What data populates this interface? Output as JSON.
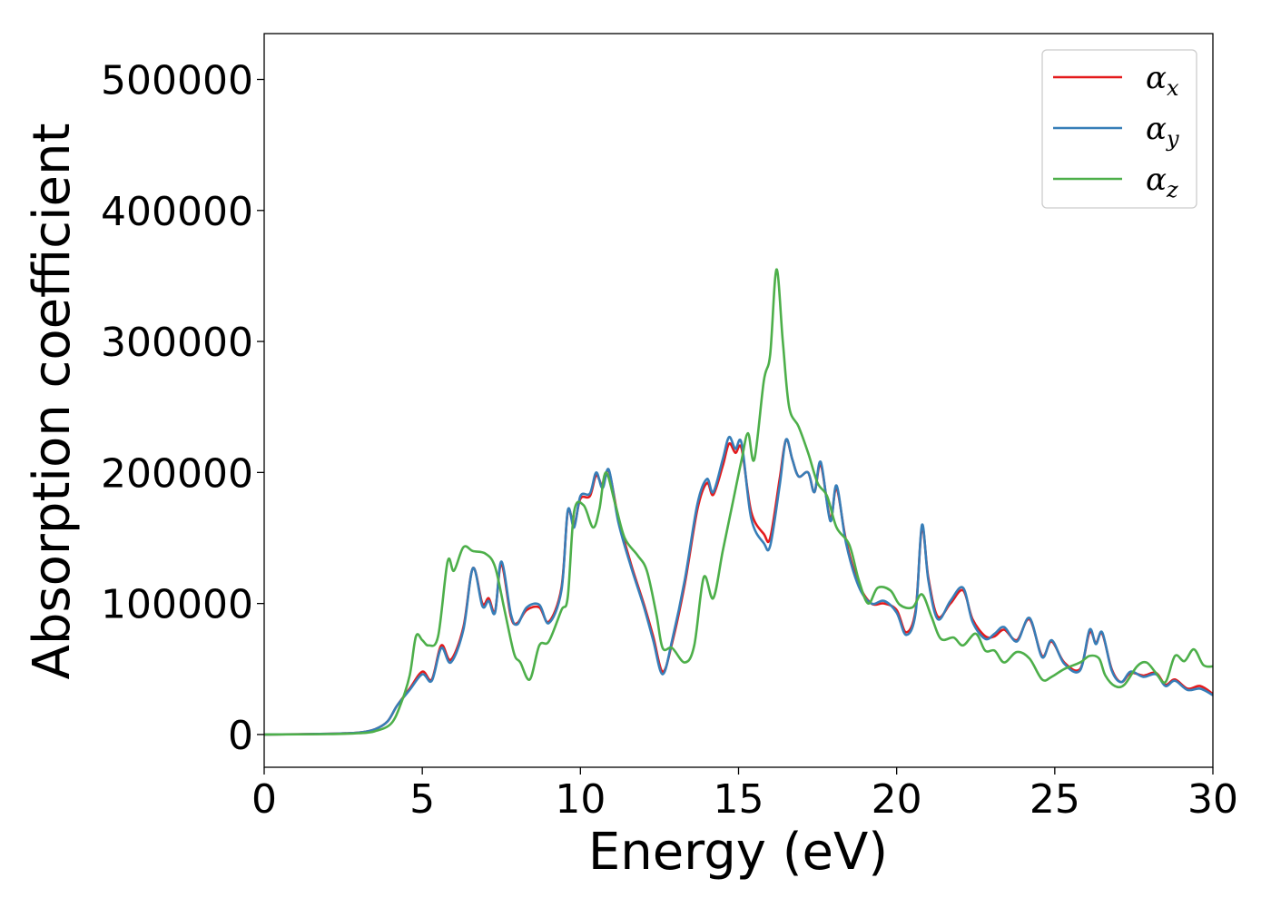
{
  "chart_data": {
    "type": "line",
    "xlabel": "Energy (eV)",
    "ylabel": "Absorption coefficient",
    "xlim": [
      0,
      30
    ],
    "ylim": [
      -25000,
      535000
    ],
    "xticks": [
      0,
      5,
      10,
      15,
      20,
      25,
      30
    ],
    "yticks": [
      0,
      100000,
      200000,
      300000,
      400000,
      500000
    ],
    "grid": false,
    "legend_position": "top-right",
    "series": [
      {
        "name": "α_x",
        "symbol": "α",
        "subscript": "x",
        "color": "#e41a1c",
        "points": [
          [
            0,
            0
          ],
          [
            2,
            500
          ],
          [
            3,
            1500
          ],
          [
            3.5,
            4000
          ],
          [
            3.9,
            10000
          ],
          [
            4.2,
            22000
          ],
          [
            4.6,
            35000
          ],
          [
            5.0,
            48000
          ],
          [
            5.3,
            42000
          ],
          [
            5.6,
            68000
          ],
          [
            5.9,
            57000
          ],
          [
            6.3,
            82000
          ],
          [
            6.6,
            127000
          ],
          [
            6.9,
            100000
          ],
          [
            7.1,
            104000
          ],
          [
            7.3,
            94000
          ],
          [
            7.5,
            130000
          ],
          [
            7.8,
            90000
          ],
          [
            8.0,
            85000
          ],
          [
            8.3,
            95000
          ],
          [
            8.7,
            97000
          ],
          [
            9.0,
            86000
          ],
          [
            9.4,
            112000
          ],
          [
            9.6,
            170000
          ],
          [
            9.8,
            160000
          ],
          [
            10.0,
            180000
          ],
          [
            10.3,
            182000
          ],
          [
            10.5,
            198000
          ],
          [
            10.7,
            190000
          ],
          [
            10.9,
            201000
          ],
          [
            11.2,
            165000
          ],
          [
            11.6,
            130000
          ],
          [
            12.0,
            100000
          ],
          [
            12.3,
            75000
          ],
          [
            12.6,
            48000
          ],
          [
            12.9,
            70000
          ],
          [
            13.3,
            115000
          ],
          [
            13.7,
            172000
          ],
          [
            14.0,
            192000
          ],
          [
            14.2,
            183000
          ],
          [
            14.5,
            205000
          ],
          [
            14.7,
            222000
          ],
          [
            14.9,
            215000
          ],
          [
            15.1,
            218000
          ],
          [
            15.4,
            170000
          ],
          [
            15.8,
            153000
          ],
          [
            16.0,
            150000
          ],
          [
            16.3,
            195000
          ],
          [
            16.5,
            225000
          ],
          [
            16.7,
            210000
          ],
          [
            16.9,
            197000
          ],
          [
            17.2,
            200000
          ],
          [
            17.4,
            185000
          ],
          [
            17.6,
            206000
          ],
          [
            17.9,
            165000
          ],
          [
            18.1,
            188000
          ],
          [
            18.4,
            148000
          ],
          [
            18.8,
            115000
          ],
          [
            19.2,
            100000
          ],
          [
            19.6,
            100000
          ],
          [
            20.0,
            95000
          ],
          [
            20.3,
            78000
          ],
          [
            20.6,
            95000
          ],
          [
            20.8,
            158000
          ],
          [
            21.0,
            120000
          ],
          [
            21.3,
            90000
          ],
          [
            21.7,
            100000
          ],
          [
            22.1,
            110000
          ],
          [
            22.4,
            88000
          ],
          [
            22.8,
            75000
          ],
          [
            23.1,
            75000
          ],
          [
            23.4,
            80000
          ],
          [
            23.8,
            72000
          ],
          [
            24.2,
            88000
          ],
          [
            24.6,
            60000
          ],
          [
            24.9,
            71000
          ],
          [
            25.3,
            55000
          ],
          [
            25.8,
            50000
          ],
          [
            26.1,
            78000
          ],
          [
            26.3,
            70000
          ],
          [
            26.5,
            77000
          ],
          [
            26.8,
            50000
          ],
          [
            27.1,
            40000
          ],
          [
            27.4,
            47000
          ],
          [
            27.8,
            45000
          ],
          [
            28.2,
            47000
          ],
          [
            28.5,
            38000
          ],
          [
            28.8,
            42000
          ],
          [
            29.2,
            35000
          ],
          [
            29.6,
            37000
          ],
          [
            30,
            31000
          ]
        ]
      },
      {
        "name": "α_y",
        "symbol": "α",
        "subscript": "y",
        "color": "#377eb8",
        "points": [
          [
            0,
            0
          ],
          [
            2,
            500
          ],
          [
            3,
            1500
          ],
          [
            3.5,
            4000
          ],
          [
            3.9,
            10000
          ],
          [
            4.2,
            22000
          ],
          [
            4.6,
            34000
          ],
          [
            5.0,
            46000
          ],
          [
            5.3,
            41000
          ],
          [
            5.6,
            66000
          ],
          [
            5.9,
            55000
          ],
          [
            6.3,
            80000
          ],
          [
            6.6,
            127000
          ],
          [
            6.9,
            98000
          ],
          [
            7.1,
            102000
          ],
          [
            7.3,
            93000
          ],
          [
            7.5,
            132000
          ],
          [
            7.8,
            92000
          ],
          [
            8.0,
            84000
          ],
          [
            8.3,
            97000
          ],
          [
            8.7,
            99000
          ],
          [
            9.0,
            85000
          ],
          [
            9.4,
            110000
          ],
          [
            9.6,
            171000
          ],
          [
            9.8,
            158000
          ],
          [
            10.0,
            182000
          ],
          [
            10.3,
            184000
          ],
          [
            10.5,
            200000
          ],
          [
            10.7,
            188000
          ],
          [
            10.9,
            202000
          ],
          [
            11.2,
            162000
          ],
          [
            11.6,
            128000
          ],
          [
            12.0,
            98000
          ],
          [
            12.3,
            72000
          ],
          [
            12.6,
            46000
          ],
          [
            12.9,
            72000
          ],
          [
            13.3,
            118000
          ],
          [
            13.7,
            176000
          ],
          [
            14.0,
            195000
          ],
          [
            14.2,
            185000
          ],
          [
            14.5,
            210000
          ],
          [
            14.7,
            227000
          ],
          [
            14.9,
            218000
          ],
          [
            15.1,
            222000
          ],
          [
            15.4,
            165000
          ],
          [
            15.8,
            146000
          ],
          [
            16.0,
            144000
          ],
          [
            16.3,
            190000
          ],
          [
            16.5,
            225000
          ],
          [
            16.7,
            210000
          ],
          [
            16.9,
            197000
          ],
          [
            17.2,
            200000
          ],
          [
            17.4,
            185000
          ],
          [
            17.6,
            208000
          ],
          [
            17.9,
            163000
          ],
          [
            18.1,
            190000
          ],
          [
            18.4,
            146000
          ],
          [
            18.8,
            113000
          ],
          [
            19.2,
            100000
          ],
          [
            19.6,
            102000
          ],
          [
            20.0,
            93000
          ],
          [
            20.3,
            76000
          ],
          [
            20.6,
            93000
          ],
          [
            20.8,
            160000
          ],
          [
            21.0,
            118000
          ],
          [
            21.3,
            88000
          ],
          [
            21.7,
            102000
          ],
          [
            22.1,
            112000
          ],
          [
            22.4,
            86000
          ],
          [
            22.8,
            73000
          ],
          [
            23.1,
            77000
          ],
          [
            23.4,
            82000
          ],
          [
            23.8,
            71000
          ],
          [
            24.2,
            89000
          ],
          [
            24.6,
            59000
          ],
          [
            24.9,
            72000
          ],
          [
            25.3,
            54000
          ],
          [
            25.8,
            49000
          ],
          [
            26.1,
            80000
          ],
          [
            26.3,
            69000
          ],
          [
            26.5,
            78000
          ],
          [
            26.8,
            49000
          ],
          [
            27.1,
            40000
          ],
          [
            27.4,
            48000
          ],
          [
            27.8,
            44000
          ],
          [
            28.2,
            46000
          ],
          [
            28.5,
            37000
          ],
          [
            28.8,
            41000
          ],
          [
            29.2,
            34000
          ],
          [
            29.6,
            35000
          ],
          [
            30,
            30000
          ]
        ]
      },
      {
        "name": "α_z",
        "symbol": "α",
        "subscript": "z",
        "color": "#4daf4a",
        "points": [
          [
            0,
            0
          ],
          [
            2,
            300
          ],
          [
            3,
            1000
          ],
          [
            3.5,
            2500
          ],
          [
            4.0,
            8000
          ],
          [
            4.3,
            22000
          ],
          [
            4.6,
            45000
          ],
          [
            4.8,
            75000
          ],
          [
            5.0,
            72000
          ],
          [
            5.2,
            68000
          ],
          [
            5.5,
            75000
          ],
          [
            5.8,
            132000
          ],
          [
            6.0,
            125000
          ],
          [
            6.3,
            143000
          ],
          [
            6.6,
            140000
          ],
          [
            7.0,
            138000
          ],
          [
            7.3,
            128000
          ],
          [
            7.6,
            95000
          ],
          [
            7.9,
            62000
          ],
          [
            8.1,
            55000
          ],
          [
            8.4,
            42000
          ],
          [
            8.7,
            68000
          ],
          [
            9.0,
            71000
          ],
          [
            9.4,
            95000
          ],
          [
            9.6,
            105000
          ],
          [
            9.8,
            170000
          ],
          [
            10.1,
            175000
          ],
          [
            10.4,
            158000
          ],
          [
            10.6,
            172000
          ],
          [
            10.8,
            200000
          ],
          [
            11.1,
            176000
          ],
          [
            11.4,
            150000
          ],
          [
            11.8,
            137000
          ],
          [
            12.1,
            125000
          ],
          [
            12.4,
            92000
          ],
          [
            12.6,
            66000
          ],
          [
            12.9,
            66000
          ],
          [
            13.3,
            55000
          ],
          [
            13.6,
            68000
          ],
          [
            13.9,
            120000
          ],
          [
            14.2,
            104000
          ],
          [
            14.5,
            140000
          ],
          [
            14.8,
            175000
          ],
          [
            15.1,
            210000
          ],
          [
            15.3,
            230000
          ],
          [
            15.5,
            210000
          ],
          [
            15.8,
            270000
          ],
          [
            16.0,
            290000
          ],
          [
            16.2,
            355000
          ],
          [
            16.4,
            300000
          ],
          [
            16.6,
            250000
          ],
          [
            16.9,
            235000
          ],
          [
            17.2,
            215000
          ],
          [
            17.5,
            192000
          ],
          [
            17.8,
            182000
          ],
          [
            18.1,
            158000
          ],
          [
            18.5,
            145000
          ],
          [
            18.8,
            118000
          ],
          [
            19.1,
            100000
          ],
          [
            19.4,
            112000
          ],
          [
            19.8,
            110000
          ],
          [
            20.1,
            99000
          ],
          [
            20.5,
            97000
          ],
          [
            20.8,
            107000
          ],
          [
            21.1,
            90000
          ],
          [
            21.4,
            73000
          ],
          [
            21.8,
            74000
          ],
          [
            22.1,
            68000
          ],
          [
            22.5,
            77000
          ],
          [
            22.8,
            64000
          ],
          [
            23.1,
            64000
          ],
          [
            23.4,
            55000
          ],
          [
            23.8,
            63000
          ],
          [
            24.2,
            58000
          ],
          [
            24.6,
            42000
          ],
          [
            24.9,
            44000
          ],
          [
            25.3,
            50000
          ],
          [
            25.8,
            55000
          ],
          [
            26.1,
            60000
          ],
          [
            26.4,
            58000
          ],
          [
            26.6,
            45000
          ],
          [
            26.9,
            37000
          ],
          [
            27.2,
            38000
          ],
          [
            27.6,
            52000
          ],
          [
            27.9,
            55000
          ],
          [
            28.2,
            47000
          ],
          [
            28.5,
            40000
          ],
          [
            28.8,
            60000
          ],
          [
            29.1,
            56000
          ],
          [
            29.4,
            65000
          ],
          [
            29.7,
            53000
          ],
          [
            30,
            52000
          ]
        ]
      }
    ]
  }
}
